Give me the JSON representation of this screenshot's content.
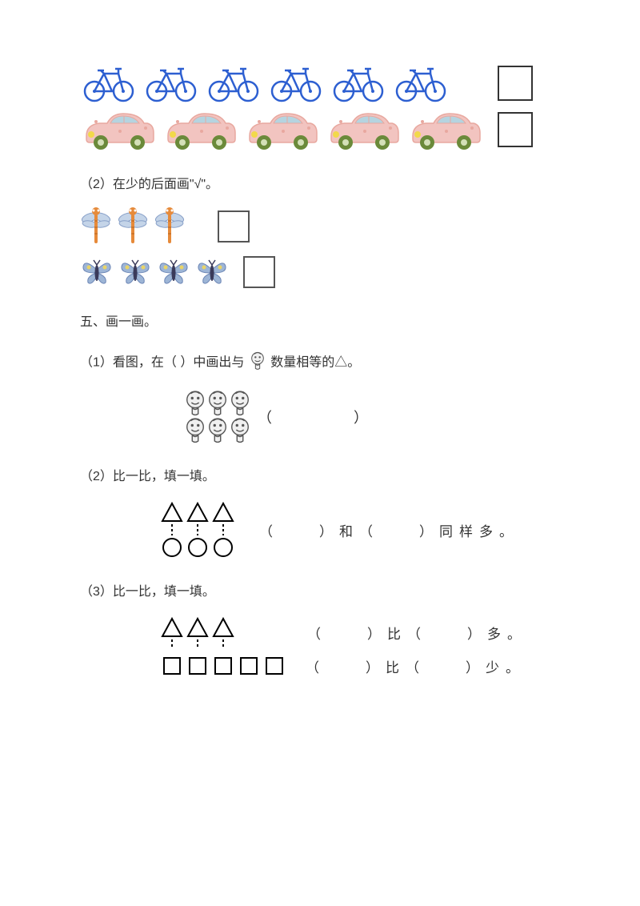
{
  "colors": {
    "bicycle": "#2d5fd1",
    "car_body": "#f2c4c0",
    "car_body_dark": "#e8a89f",
    "car_wheel": "#6b8a3a",
    "car_window": "#b5d4e0",
    "car_light": "#f2d94a",
    "dragonfly_body": "#e68a3a",
    "dragonfly_wing": "#c4d4e8",
    "butterfly_body": "#3a3a5a",
    "butterfly_wing": "#9db5d6",
    "butterfly_spot": "#e8d468",
    "face_outline": "#555555",
    "face_fill": "#f0f0f0",
    "box_border": "#333333",
    "text": "#333333"
  },
  "q4_1": {
    "bicycles": 6,
    "cars": 5
  },
  "q4_2": {
    "prompt": "（2）在少的后面画\"√\"。",
    "dragonflies": 3,
    "butterflies": 4
  },
  "section5_title": "五、画一画。",
  "q5_1": {
    "prompt_prefix": "（1）看图，在（  ）中画出与",
    "prompt_suffix": "数量相等的△。",
    "faces": 6,
    "paren_blank": "（　　　　　）"
  },
  "q5_2": {
    "prompt": "（2）比一比，填一填。",
    "triangles": 3,
    "circles": 3,
    "text": "（　　）和（　　）同样多。"
  },
  "q5_3": {
    "prompt": "（3）比一比，填一填。",
    "triangles": 3,
    "squares": 5,
    "line1": "（　　）比（　　）多。",
    "line2": "（　　）比（　　）少。"
  }
}
